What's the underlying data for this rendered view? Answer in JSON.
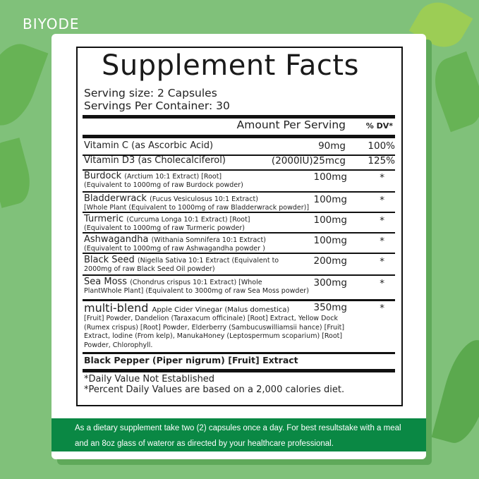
{
  "brand": "BIYODE",
  "title": "Supplement Facts",
  "serving_size": "Serving size: 2 Capsules",
  "servings_per_container": "Servings Per Container: 30",
  "amount_header": "Amount Per Serving",
  "dv_header": "% DV*",
  "vitamins": [
    {
      "name": "Vitamin C (as Ascorbic Acid)",
      "amount": "90mg",
      "dv": "100%"
    },
    {
      "name": "Vitamin D3 (as Cholecalciferol)",
      "amount": "(2000IU)25mcg",
      "dv": "125%"
    }
  ],
  "ingredients": [
    {
      "name": "Burdock",
      "desc1": "(Arctium 10:1 Extract) [Root]",
      "desc2": "(Equivalent to 1000mg of raw Burdock powder)",
      "amount": "100mg",
      "dv": "*"
    },
    {
      "name": "Bladderwrack",
      "desc1": "(Fucus Vesiculosus 10:1 Extract)",
      "desc2": "[Whole Plant (Equivalent to 1000mg of raw Bladderwrack powder)]",
      "amount": "100mg",
      "dv": "*"
    },
    {
      "name": "Turmeric",
      "desc1": "(Curcuma Longa 10:1 Extract) [Root]",
      "desc2": "(Equivalent to 1000mg of raw Turmeric powder)",
      "amount": "100mg",
      "dv": "*"
    },
    {
      "name": "Ashwagandha",
      "desc1": "(Withania Somnifera 10:1 Extract)",
      "desc2": "(Equivalent to 1000mg of raw Ashwagandha powder )",
      "amount": "100mg",
      "dv": "*"
    },
    {
      "name": "Black Seed",
      "desc1": "(Nigella Sativa 10:1 Extract (Equivalent to",
      "desc2": "2000mg of raw Black Seed Oil powder)",
      "amount": "200mg",
      "dv": "*"
    },
    {
      "name": "Sea Moss",
      "desc1": "(Chondrus crispus 10:1 Extract) [Whole",
      "desc2": "PlantWhole Plant] (Equivalent to 3000mg of raw Sea Moss powder)",
      "amount": "300mg",
      "dv": "*"
    }
  ],
  "blend": {
    "name": "multi-blend",
    "line1": "Apple Cider Vinegar (Malus domestica)",
    "lines": [
      "[Fruit] Powder, Dandelion (Taraxacum officinale) [Root] Extract, Yellow Dock",
      "(Rumex crispus) [Root] Powder, Elderberry (Sambucuswilliamsii hance) [Fruit]",
      "Extract, lodine (From kelp), ManukaHoney (Leptospermum scoparium) [Root]",
      "Powder, Chlorophyll."
    ],
    "amount": "350mg",
    "dv": "*"
  },
  "black_pepper": "Black Pepper (Piper nigrum) [Fruit] Extract",
  "footnotes": [
    "*Daily Value Not Established",
    "*Percent Daily Values are based on a 2,000 calories diet."
  ],
  "directions": [
    "As a dietary supplement take two (2) capsules once a day. For best resultstake with a meal",
    "and an 8oz glass of wateror as directed by  your healthcare professional."
  ],
  "colors": {
    "background": "#80c17a",
    "band": "#0a8844",
    "text": "#222222"
  }
}
